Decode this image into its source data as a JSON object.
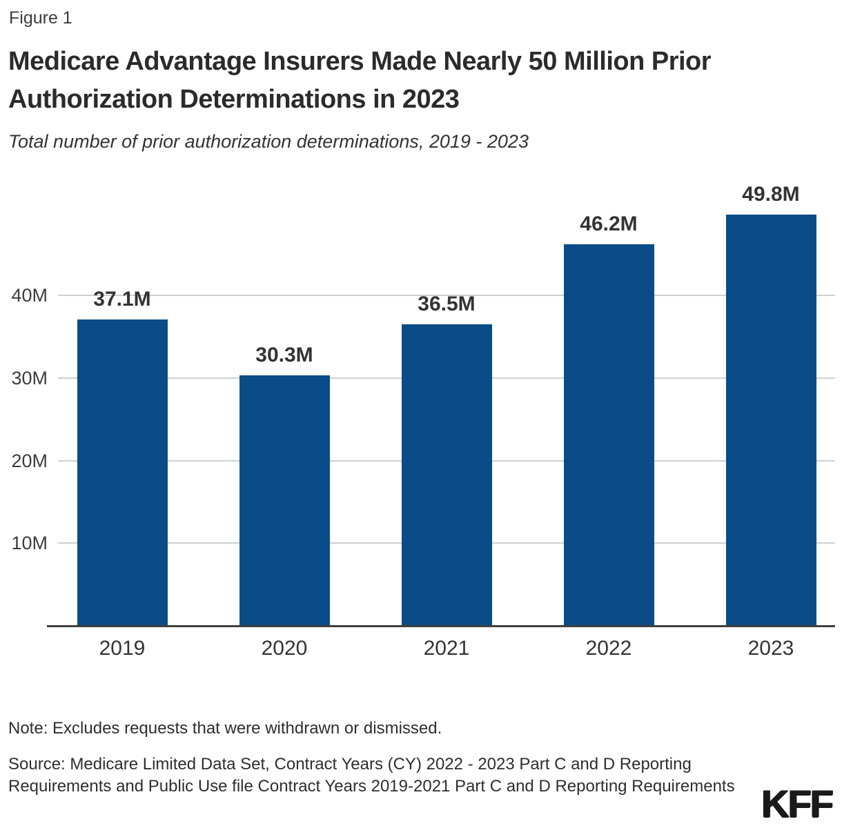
{
  "figure_label": "Figure 1",
  "title_line1": "Medicare Advantage Insurers Made Nearly 50 Million Prior",
  "title_line2": "Authorization Determinations in 2023",
  "subtitle": "Total number of prior authorization determinations, 2019 - 2023",
  "note": "Note: Excludes requests that were withdrawn or dismissed.",
  "source": "Source: Medicare Limited Data Set, Contract Years (CY) 2022 - 2023 Part C and D Reporting Requirements and Public Use file Contract Years 2019-2021 Part C and D Reporting Requirements",
  "logo_text": "KFF",
  "colors": {
    "bar": "#0A4C87",
    "axis": "#3F3F3F",
    "gridline": "#CFCFCF",
    "title_text": "#2B2B2B",
    "body_text": "#333333"
  },
  "chart_data": {
    "type": "bar",
    "title": "Medicare Advantage Insurers Made Nearly 50 Million Prior Authorization Determinations in 2023",
    "subtitle": "Total number of prior authorization determinations, 2019 - 2023",
    "categories": [
      "2019",
      "2020",
      "2021",
      "2022",
      "2023"
    ],
    "values": [
      37.1,
      30.3,
      36.5,
      46.2,
      49.8
    ],
    "value_labels": [
      "37.1M",
      "30.3M",
      "36.5M",
      "46.2M",
      "49.8M"
    ],
    "unit": "millions of prior authorization determinations",
    "ylim": [
      0,
      50
    ],
    "y_ticks": [
      {
        "value": 10,
        "label": "10M"
      },
      {
        "value": 20,
        "label": "20M"
      },
      {
        "value": 30,
        "label": "30M"
      },
      {
        "value": 40,
        "label": "40M"
      }
    ],
    "grid": true,
    "legend": "none",
    "bar_color": "#0A4C87"
  }
}
